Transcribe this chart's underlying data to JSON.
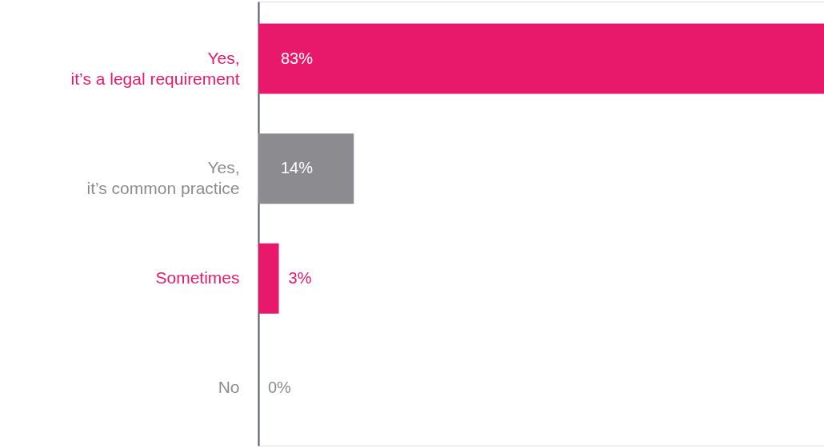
{
  "chart_data": {
    "type": "bar",
    "orientation": "horizontal",
    "tick_labels": "y",
    "categories": [
      "Yes,\nit’s a legal requirement",
      "Yes,\nit’s common practice",
      "Sometimes",
      "No"
    ],
    "values": [
      83,
      14,
      3,
      0
    ],
    "colors": [
      "#e8196b",
      "#8c8b8f",
      "#e8196b",
      "#8c8b8f"
    ],
    "value_labels": [
      "83%",
      "14%",
      "3%",
      "0%"
    ],
    "grid": false
  }
}
